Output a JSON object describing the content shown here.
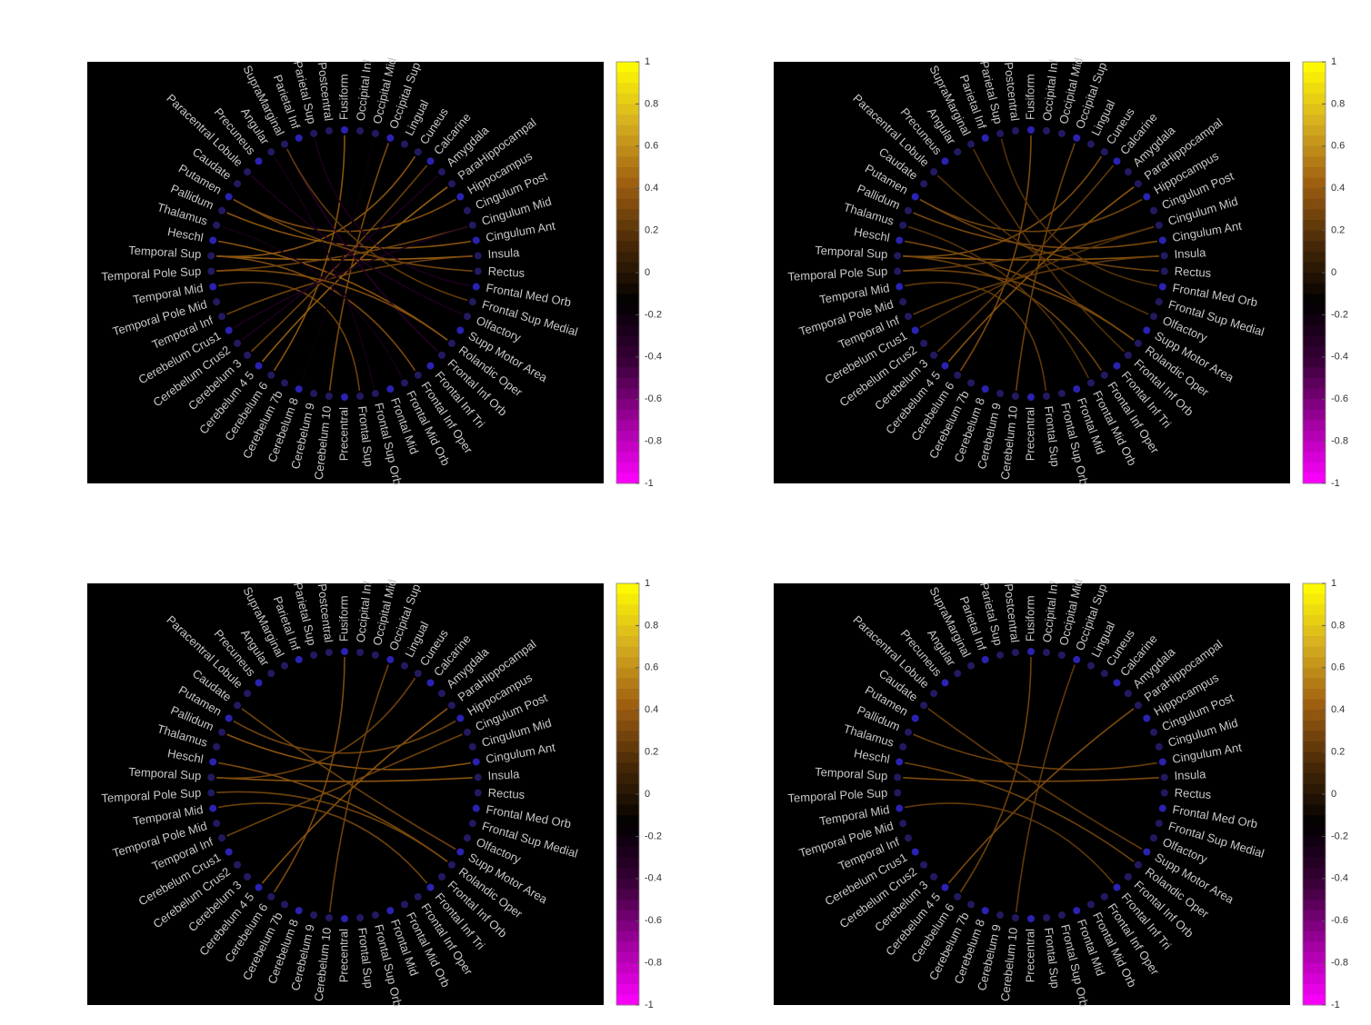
{
  "chart_data": [
    {
      "type": "chord",
      "nodes": [
        "Fusiform",
        "Occipital Inf",
        "Occipital Mid",
        "Occipital Sup",
        "Lingual",
        "Cuneus",
        "Calcarine",
        "Amygdala",
        "ParaHippocampal",
        "Hippocampus",
        "Cingulum Post",
        "Cingulum Mid",
        "Cingulum Ant",
        "Insula",
        "Rectus",
        "Frontal Med Orb",
        "Frontal Sup Medial",
        "Olfactory",
        "Supp Motor Area",
        "Rolandic Oper",
        "Frontal Inf Orb",
        "Frontal Inf Tri",
        "Frontal Inf Oper",
        "Frontal Mid Orb",
        "Frontal Mid",
        "Frontal Sup Orb",
        "Frontal Sup",
        "Precentral",
        "Cerebelum 10",
        "Cerebelum 9",
        "Cerebelum 8",
        "Cerebelum 7b",
        "Cerebelum 6",
        "Cerebelum 4 5",
        "Cerebelum 3",
        "Cerebelum Crus2",
        "Cerebelum Crus1",
        "Temporal Inf",
        "Temporal Pole Mid",
        "Temporal Mid",
        "Temporal Pole Sup",
        "Temporal Sup",
        "Heschl",
        "Thalamus",
        "Pallidum",
        "Putamen",
        "Caudate",
        "Paracentral Lobule",
        "Precuneus",
        "Angular",
        "SupraMarginal",
        "Parietal Inf",
        "Parietal Sup",
        "Postcentral"
      ],
      "links": [
        {
          "source": 41,
          "target": 13,
          "value": 0.45
        },
        {
          "source": 41,
          "target": 5,
          "value": 0.4
        },
        {
          "source": 44,
          "target": 12,
          "value": 0.4
        },
        {
          "source": 41,
          "target": 22,
          "value": 0.35
        },
        {
          "source": 42,
          "target": 19,
          "value": 0.4
        },
        {
          "source": 40,
          "target": 11,
          "value": 0.3
        },
        {
          "source": 39,
          "target": 26,
          "value": 0.3
        },
        {
          "source": 33,
          "target": 8,
          "value": 0.45
        },
        {
          "source": 0,
          "target": 32,
          "value": 0.4
        },
        {
          "source": 3,
          "target": 28,
          "value": 0.35
        },
        {
          "source": 6,
          "target": 34,
          "value": 0.3
        },
        {
          "source": 9,
          "target": 45,
          "value": 0.35
        },
        {
          "source": 13,
          "target": 37,
          "value": 0.3
        },
        {
          "source": 17,
          "target": 47,
          "value": -0.3
        },
        {
          "source": 20,
          "target": 50,
          "value": -0.35
        },
        {
          "source": 23,
          "target": 43,
          "value": -0.25
        },
        {
          "source": 11,
          "target": 36,
          "value": -0.3
        },
        {
          "source": 15,
          "target": 52,
          "value": -0.3
        },
        {
          "source": 25,
          "target": 49,
          "value": -0.25
        },
        {
          "source": 2,
          "target": 30,
          "value": -0.2
        },
        {
          "source": 7,
          "target": 35,
          "value": -0.3
        },
        {
          "source": 19,
          "target": 40,
          "value": 0.35
        },
        {
          "source": 14,
          "target": 45,
          "value": 0.3
        },
        {
          "source": 50,
          "target": 16,
          "value": 0.25
        }
      ],
      "ylim": [
        -1,
        1
      ],
      "yticks": [
        1,
        0.8,
        0.6,
        0.4,
        0.2,
        0,
        -0.2,
        -0.4,
        -0.6,
        -0.8,
        -1
      ],
      "colormap": [
        "#ff00ff",
        "#a0009f",
        "#3a003a",
        "#000000",
        "#4a2a08",
        "#a06010",
        "#d8b020",
        "#ffff00"
      ]
    },
    {
      "type": "chord",
      "nodes": [
        "Fusiform",
        "Occipital Inf",
        "Occipital Mid",
        "Occipital Sup",
        "Lingual",
        "Cuneus",
        "Calcarine",
        "Amygdala",
        "ParaHippocampal",
        "Hippocampus",
        "Cingulum Post",
        "Cingulum Mid",
        "Cingulum Ant",
        "Insula",
        "Rectus",
        "Frontal Med Orb",
        "Frontal Sup Medial",
        "Olfactory",
        "Supp Motor Area",
        "Rolandic Oper",
        "Frontal Inf Orb",
        "Frontal Inf Tri",
        "Frontal Inf Oper",
        "Frontal Mid Orb",
        "Frontal Mid",
        "Frontal Sup Orb",
        "Frontal Sup",
        "Precentral",
        "Cerebelum 10",
        "Cerebelum 9",
        "Cerebelum 8",
        "Cerebelum 7b",
        "Cerebelum 6",
        "Cerebelum 4 5",
        "Cerebelum 3",
        "Cerebelum Crus2",
        "Cerebelum Crus1",
        "Temporal Inf",
        "Temporal Pole Mid",
        "Temporal Mid",
        "Temporal Pole Sup",
        "Temporal Sup",
        "Heschl",
        "Thalamus",
        "Pallidum",
        "Putamen",
        "Caudate",
        "Paracentral Lobule",
        "Precuneus",
        "Angular",
        "SupraMarginal",
        "Parietal Inf",
        "Parietal Sup",
        "Postcentral"
      ],
      "links": [
        {
          "source": 41,
          "target": 13,
          "value": 0.4
        },
        {
          "source": 41,
          "target": 5,
          "value": 0.35
        },
        {
          "source": 44,
          "target": 12,
          "value": 0.35
        },
        {
          "source": 41,
          "target": 22,
          "value": 0.3
        },
        {
          "source": 42,
          "target": 19,
          "value": 0.35
        },
        {
          "source": 40,
          "target": 11,
          "value": 0.25
        },
        {
          "source": 39,
          "target": 26,
          "value": 0.25
        },
        {
          "source": 33,
          "target": 8,
          "value": 0.4
        },
        {
          "source": 0,
          "target": 32,
          "value": 0.35
        },
        {
          "source": 3,
          "target": 28,
          "value": 0.3
        },
        {
          "source": 6,
          "target": 34,
          "value": 0.25
        },
        {
          "source": 9,
          "target": 45,
          "value": 0.3
        },
        {
          "source": 13,
          "target": 37,
          "value": 0.25
        },
        {
          "source": 17,
          "target": 47,
          "value": 0.2
        },
        {
          "source": 20,
          "target": 50,
          "value": 0.2
        },
        {
          "source": 23,
          "target": 43,
          "value": 0.2
        },
        {
          "source": 11,
          "target": 36,
          "value": 0.2
        },
        {
          "source": 15,
          "target": 52,
          "value": 0.2
        },
        {
          "source": 19,
          "target": 40,
          "value": 0.3
        },
        {
          "source": 14,
          "target": 45,
          "value": 0.3
        }
      ],
      "ylim": [
        -1,
        1
      ],
      "yticks": [
        1,
        0.8,
        0.6,
        0.4,
        0.2,
        0,
        -0.2,
        -0.4,
        -0.6,
        -0.8,
        -1
      ],
      "colormap": [
        "#ff00ff",
        "#a0009f",
        "#3a003a",
        "#000000",
        "#4a2a08",
        "#a06010",
        "#d8b020",
        "#ffff00"
      ]
    },
    {
      "type": "chord",
      "nodes": [
        "Fusiform",
        "Occipital Inf",
        "Occipital Mid",
        "Occipital Sup",
        "Lingual",
        "Cuneus",
        "Calcarine",
        "Amygdala",
        "ParaHippocampal",
        "Hippocampus",
        "Cingulum Post",
        "Cingulum Mid",
        "Cingulum Ant",
        "Insula",
        "Rectus",
        "Frontal Med Orb",
        "Frontal Sup Medial",
        "Olfactory",
        "Supp Motor Area",
        "Rolandic Oper",
        "Frontal Inf Orb",
        "Frontal Inf Tri",
        "Frontal Inf Oper",
        "Frontal Mid Orb",
        "Frontal Mid",
        "Frontal Sup Orb",
        "Frontal Sup",
        "Precentral",
        "Cerebelum 10",
        "Cerebelum 9",
        "Cerebelum 8",
        "Cerebelum 7b",
        "Cerebelum 6",
        "Cerebelum 4 5",
        "Cerebelum 3",
        "Cerebelum Crus2",
        "Cerebelum Crus1",
        "Temporal Inf",
        "Temporal Pole Mid",
        "Temporal Mid",
        "Temporal Pole Sup",
        "Temporal Sup",
        "Heschl",
        "Thalamus",
        "Pallidum",
        "Putamen",
        "Caudate",
        "Paracentral Lobule",
        "Precuneus",
        "Angular",
        "SupraMarginal",
        "Parietal Inf",
        "Parietal Sup",
        "Postcentral"
      ],
      "links": [
        {
          "source": 41,
          "target": 13,
          "value": 0.4
        },
        {
          "source": 44,
          "target": 12,
          "value": 0.4
        },
        {
          "source": 42,
          "target": 19,
          "value": 0.35
        },
        {
          "source": 33,
          "target": 8,
          "value": 0.4
        },
        {
          "source": 0,
          "target": 32,
          "value": 0.35
        },
        {
          "source": 3,
          "target": 28,
          "value": 0.3
        },
        {
          "source": 9,
          "target": 45,
          "value": 0.3
        },
        {
          "source": 19,
          "target": 40,
          "value": 0.3
        },
        {
          "source": 41,
          "target": 5,
          "value": 0.3
        },
        {
          "source": 46,
          "target": 18,
          "value": 0.3
        },
        {
          "source": 37,
          "target": 10,
          "value": 0.3
        },
        {
          "source": 21,
          "target": 39,
          "value": 0.3
        }
      ],
      "ylim": [
        -1,
        1
      ],
      "yticks": [
        1,
        0.8,
        0.6,
        0.4,
        0.2,
        0,
        -0.2,
        -0.4,
        -0.6,
        -0.8,
        -1
      ],
      "colormap": [
        "#ff00ff",
        "#a0009f",
        "#3a003a",
        "#000000",
        "#4a2a08",
        "#a06010",
        "#d8b020",
        "#ffff00"
      ]
    },
    {
      "type": "chord",
      "nodes": [
        "Fusiform",
        "Occipital Inf",
        "Occipital Mid",
        "Occipital Sup",
        "Lingual",
        "Cuneus",
        "Calcarine",
        "Amygdala",
        "ParaHippocampal",
        "Hippocampus",
        "Cingulum Post",
        "Cingulum Mid",
        "Cingulum Ant",
        "Insula",
        "Rectus",
        "Frontal Med Orb",
        "Frontal Sup Medial",
        "Olfactory",
        "Supp Motor Area",
        "Rolandic Oper",
        "Frontal Inf Orb",
        "Frontal Inf Tri",
        "Frontal Inf Oper",
        "Frontal Mid Orb",
        "Frontal Mid",
        "Frontal Sup Orb",
        "Frontal Sup",
        "Precentral",
        "Cerebelum 10",
        "Cerebelum 9",
        "Cerebelum 8",
        "Cerebelum 7b",
        "Cerebelum 6",
        "Cerebelum 4 5",
        "Cerebelum 3",
        "Cerebelum Crus2",
        "Cerebelum Crus1",
        "Temporal Inf",
        "Temporal Pole Mid",
        "Temporal Mid",
        "Temporal Pole Sup",
        "Temporal Sup",
        "Heschl",
        "Thalamus",
        "Pallidum",
        "Putamen",
        "Caudate",
        "Paracentral Lobule",
        "Precuneus",
        "Angular",
        "SupraMarginal",
        "Parietal Inf",
        "Parietal Sup",
        "Postcentral"
      ],
      "links": [
        {
          "source": 41,
          "target": 13,
          "value": 0.35
        },
        {
          "source": 44,
          "target": 12,
          "value": 0.3
        },
        {
          "source": 33,
          "target": 8,
          "value": 0.35
        },
        {
          "source": 0,
          "target": 32,
          "value": 0.3
        },
        {
          "source": 42,
          "target": 19,
          "value": 0.3
        },
        {
          "source": 3,
          "target": 28,
          "value": 0.25
        },
        {
          "source": 46,
          "target": 18,
          "value": 0.25
        },
        {
          "source": 21,
          "target": 39,
          "value": 0.25
        }
      ],
      "ylim": [
        -1,
        1
      ],
      "yticks": [
        1,
        0.8,
        0.6,
        0.4,
        0.2,
        0,
        -0.2,
        -0.4,
        -0.6,
        -0.8,
        -1
      ],
      "colormap": [
        "#ff00ff",
        "#a0009f",
        "#3a003a",
        "#000000",
        "#4a2a08",
        "#a06010",
        "#d8b020",
        "#ffff00"
      ]
    }
  ]
}
